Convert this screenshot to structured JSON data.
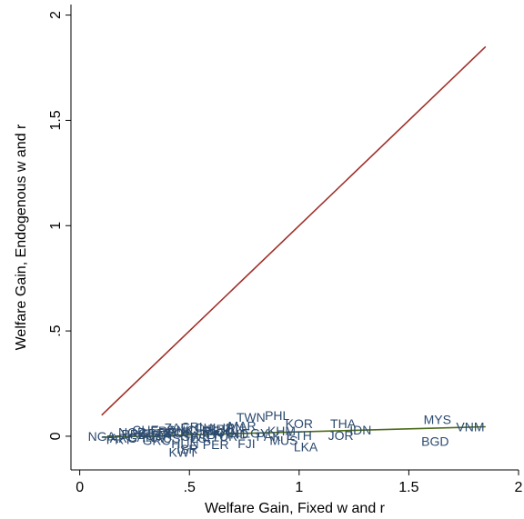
{
  "chart_data": {
    "type": "scatter",
    "xlabel": "Welfare Gain, Fixed w and r",
    "ylabel": "Welfare Gain, Endogenous w and r",
    "xlim": [
      -0.04,
      2.0
    ],
    "ylim": [
      -0.16,
      2.05
    ],
    "x_ticks": [
      0,
      0.5,
      1,
      1.5,
      2
    ],
    "x_tick_labels": [
      "0",
      ".5",
      "1",
      "1.5",
      "2"
    ],
    "y_ticks": [
      0,
      0.5,
      1,
      1.5,
      2
    ],
    "y_tick_labels": [
      "0",
      ".5",
      "1",
      "1.5",
      "2"
    ],
    "grid": false,
    "legend": "none",
    "point_color": "#2b4a6f",
    "lines": [
      {
        "role": "45-degree",
        "color": "#a0302a",
        "x": [
          0.1,
          1.85
        ],
        "y": [
          0.1,
          1.85
        ]
      },
      {
        "role": "fitted",
        "color": "#4b6a1a",
        "x": [
          0.1,
          1.85
        ],
        "y": [
          -0.005,
          0.045
        ]
      }
    ],
    "points": [
      {
        "label": "MYS",
        "x": 1.63,
        "y": 0.08
      },
      {
        "label": "VNM",
        "x": 1.78,
        "y": 0.045
      },
      {
        "label": "BGD",
        "x": 1.62,
        "y": -0.025
      },
      {
        "label": "THA",
        "x": 1.2,
        "y": 0.06
      },
      {
        "label": "IDN",
        "x": 1.28,
        "y": 0.03
      },
      {
        "label": "JOR",
        "x": 1.19,
        "y": 0.005
      },
      {
        "label": "KOR",
        "x": 1.0,
        "y": 0.06
      },
      {
        "label": "PHL",
        "x": 0.9,
        "y": 0.1
      },
      {
        "label": "TWN",
        "x": 0.78,
        "y": 0.09
      },
      {
        "label": "LKA",
        "x": 1.03,
        "y": -0.05
      },
      {
        "label": "MUS",
        "x": 0.93,
        "y": -0.02
      },
      {
        "label": "KHM",
        "x": 0.92,
        "y": 0.025
      },
      {
        "label": "ETH",
        "x": 1.0,
        "y": 0.005
      },
      {
        "label": "FJI",
        "x": 0.76,
        "y": -0.035
      },
      {
        "label": "IRN",
        "x": 0.7,
        "y": 0.04
      },
      {
        "label": "CRI",
        "x": 0.51,
        "y": 0.045
      },
      {
        "label": "CHE",
        "x": 0.3,
        "y": 0.03
      },
      {
        "label": "NGA",
        "x": 0.1,
        "y": 0.0
      },
      {
        "label": "PRY",
        "x": 0.18,
        "y": -0.015
      },
      {
        "label": "KWT",
        "x": 0.47,
        "y": -0.075
      },
      {
        "label": "ISR",
        "x": 0.49,
        "y": -0.06
      },
      {
        "label": "BRA",
        "x": 0.25,
        "y": 0.01
      },
      {
        "label": "ARG",
        "x": 0.2,
        "y": -0.01
      },
      {
        "label": "CHN",
        "x": 0.55,
        "y": 0.03
      },
      {
        "label": "MEX",
        "x": 0.62,
        "y": 0.025
      },
      {
        "label": "TUR",
        "x": 0.66,
        "y": 0.0
      },
      {
        "label": "POL",
        "x": 0.45,
        "y": 0.015
      },
      {
        "label": "IND",
        "x": 0.72,
        "y": 0.01
      },
      {
        "label": "USA",
        "x": 0.36,
        "y": 0.005
      },
      {
        "label": "DEU",
        "x": 0.42,
        "y": 0.02
      },
      {
        "label": "FRA",
        "x": 0.38,
        "y": 0.025
      },
      {
        "label": "JPN",
        "x": 0.6,
        "y": 0.01
      },
      {
        "label": "GBR",
        "x": 0.33,
        "y": 0.015
      },
      {
        "label": "CAN",
        "x": 0.28,
        "y": -0.005
      },
      {
        "label": "AUS",
        "x": 0.4,
        "y": -0.01
      },
      {
        "label": "SWE",
        "x": 0.53,
        "y": 0.0
      },
      {
        "label": "NOR",
        "x": 0.24,
        "y": 0.02
      },
      {
        "label": "DNK",
        "x": 0.46,
        "y": 0.03
      },
      {
        "label": "ITA",
        "x": 0.5,
        "y": 0.005
      },
      {
        "label": "ESP",
        "x": 0.56,
        "y": -0.01
      },
      {
        "label": "PRT",
        "x": 0.64,
        "y": 0.035
      },
      {
        "label": "GRC",
        "x": 0.35,
        "y": -0.02
      },
      {
        "label": "HUN",
        "x": 0.48,
        "y": -0.035
      },
      {
        "label": "PER",
        "x": 0.62,
        "y": -0.04
      },
      {
        "label": "CHL",
        "x": 0.58,
        "y": 0.04
      },
      {
        "label": "COL",
        "x": 0.68,
        "y": 0.02
      },
      {
        "label": "EGY",
        "x": 0.8,
        "y": 0.015
      },
      {
        "label": "PAK",
        "x": 0.86,
        "y": 0.0
      },
      {
        "label": "MAR",
        "x": 0.74,
        "y": 0.05
      },
      {
        "label": "ZAF",
        "x": 0.44,
        "y": 0.04
      }
    ]
  }
}
